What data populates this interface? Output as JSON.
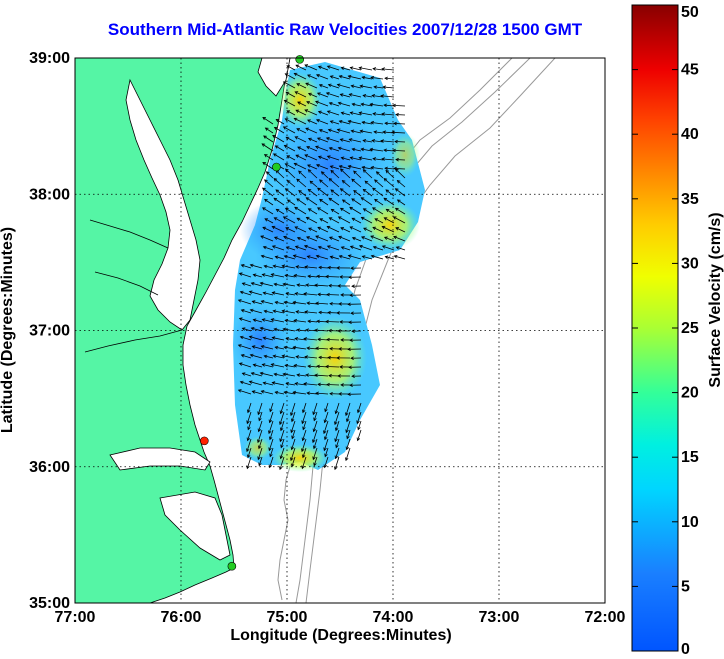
{
  "chart_data": {
    "type": "heatmap",
    "title": "Southern Mid-Atlantic Raw Velocities 2007/12/28 1500 GMT",
    "xlabel": "Longitude (Degrees:Minutes)",
    "ylabel": "Latitude (Degrees:Minutes)",
    "xlim": [
      -77,
      -72
    ],
    "ylim": [
      35,
      39
    ],
    "x_ticks": [
      {
        "value": -77,
        "label": "77:00"
      },
      {
        "value": -76,
        "label": "76:00"
      },
      {
        "value": -75,
        "label": "75:00"
      },
      {
        "value": -74,
        "label": "74:00"
      },
      {
        "value": -73,
        "label": "73:00"
      },
      {
        "value": -72,
        "label": "72:00"
      }
    ],
    "y_ticks": [
      {
        "value": 35,
        "label": "35:00"
      },
      {
        "value": 36,
        "label": "36:00"
      },
      {
        "value": 37,
        "label": "37:00"
      },
      {
        "value": 38,
        "label": "38:00"
      },
      {
        "value": 39,
        "label": "39:00"
      }
    ],
    "grid": true,
    "colorbar": {
      "label": "Surface Velocity (cm/s)",
      "min": 0,
      "max": 50,
      "ticks": [
        0,
        5,
        10,
        15,
        20,
        25,
        30,
        35,
        40,
        45,
        50
      ],
      "colormap": "jet"
    },
    "site_markers": [
      {
        "lon": -74.88,
        "lat": 38.99,
        "color": "#22cc22"
      },
      {
        "lon": -75.1,
        "lat": 38.2,
        "color": "#22cc22"
      },
      {
        "lon": -75.78,
        "lat": 36.19,
        "color": "#ff2200"
      },
      {
        "lon": -75.52,
        "lat": 35.27,
        "color": "#22cc22"
      }
    ],
    "colors": {
      "land": "#55f5a5",
      "ocean": "#ffffff",
      "bathymetry": "#999999",
      "grid": "#000000"
    }
  }
}
